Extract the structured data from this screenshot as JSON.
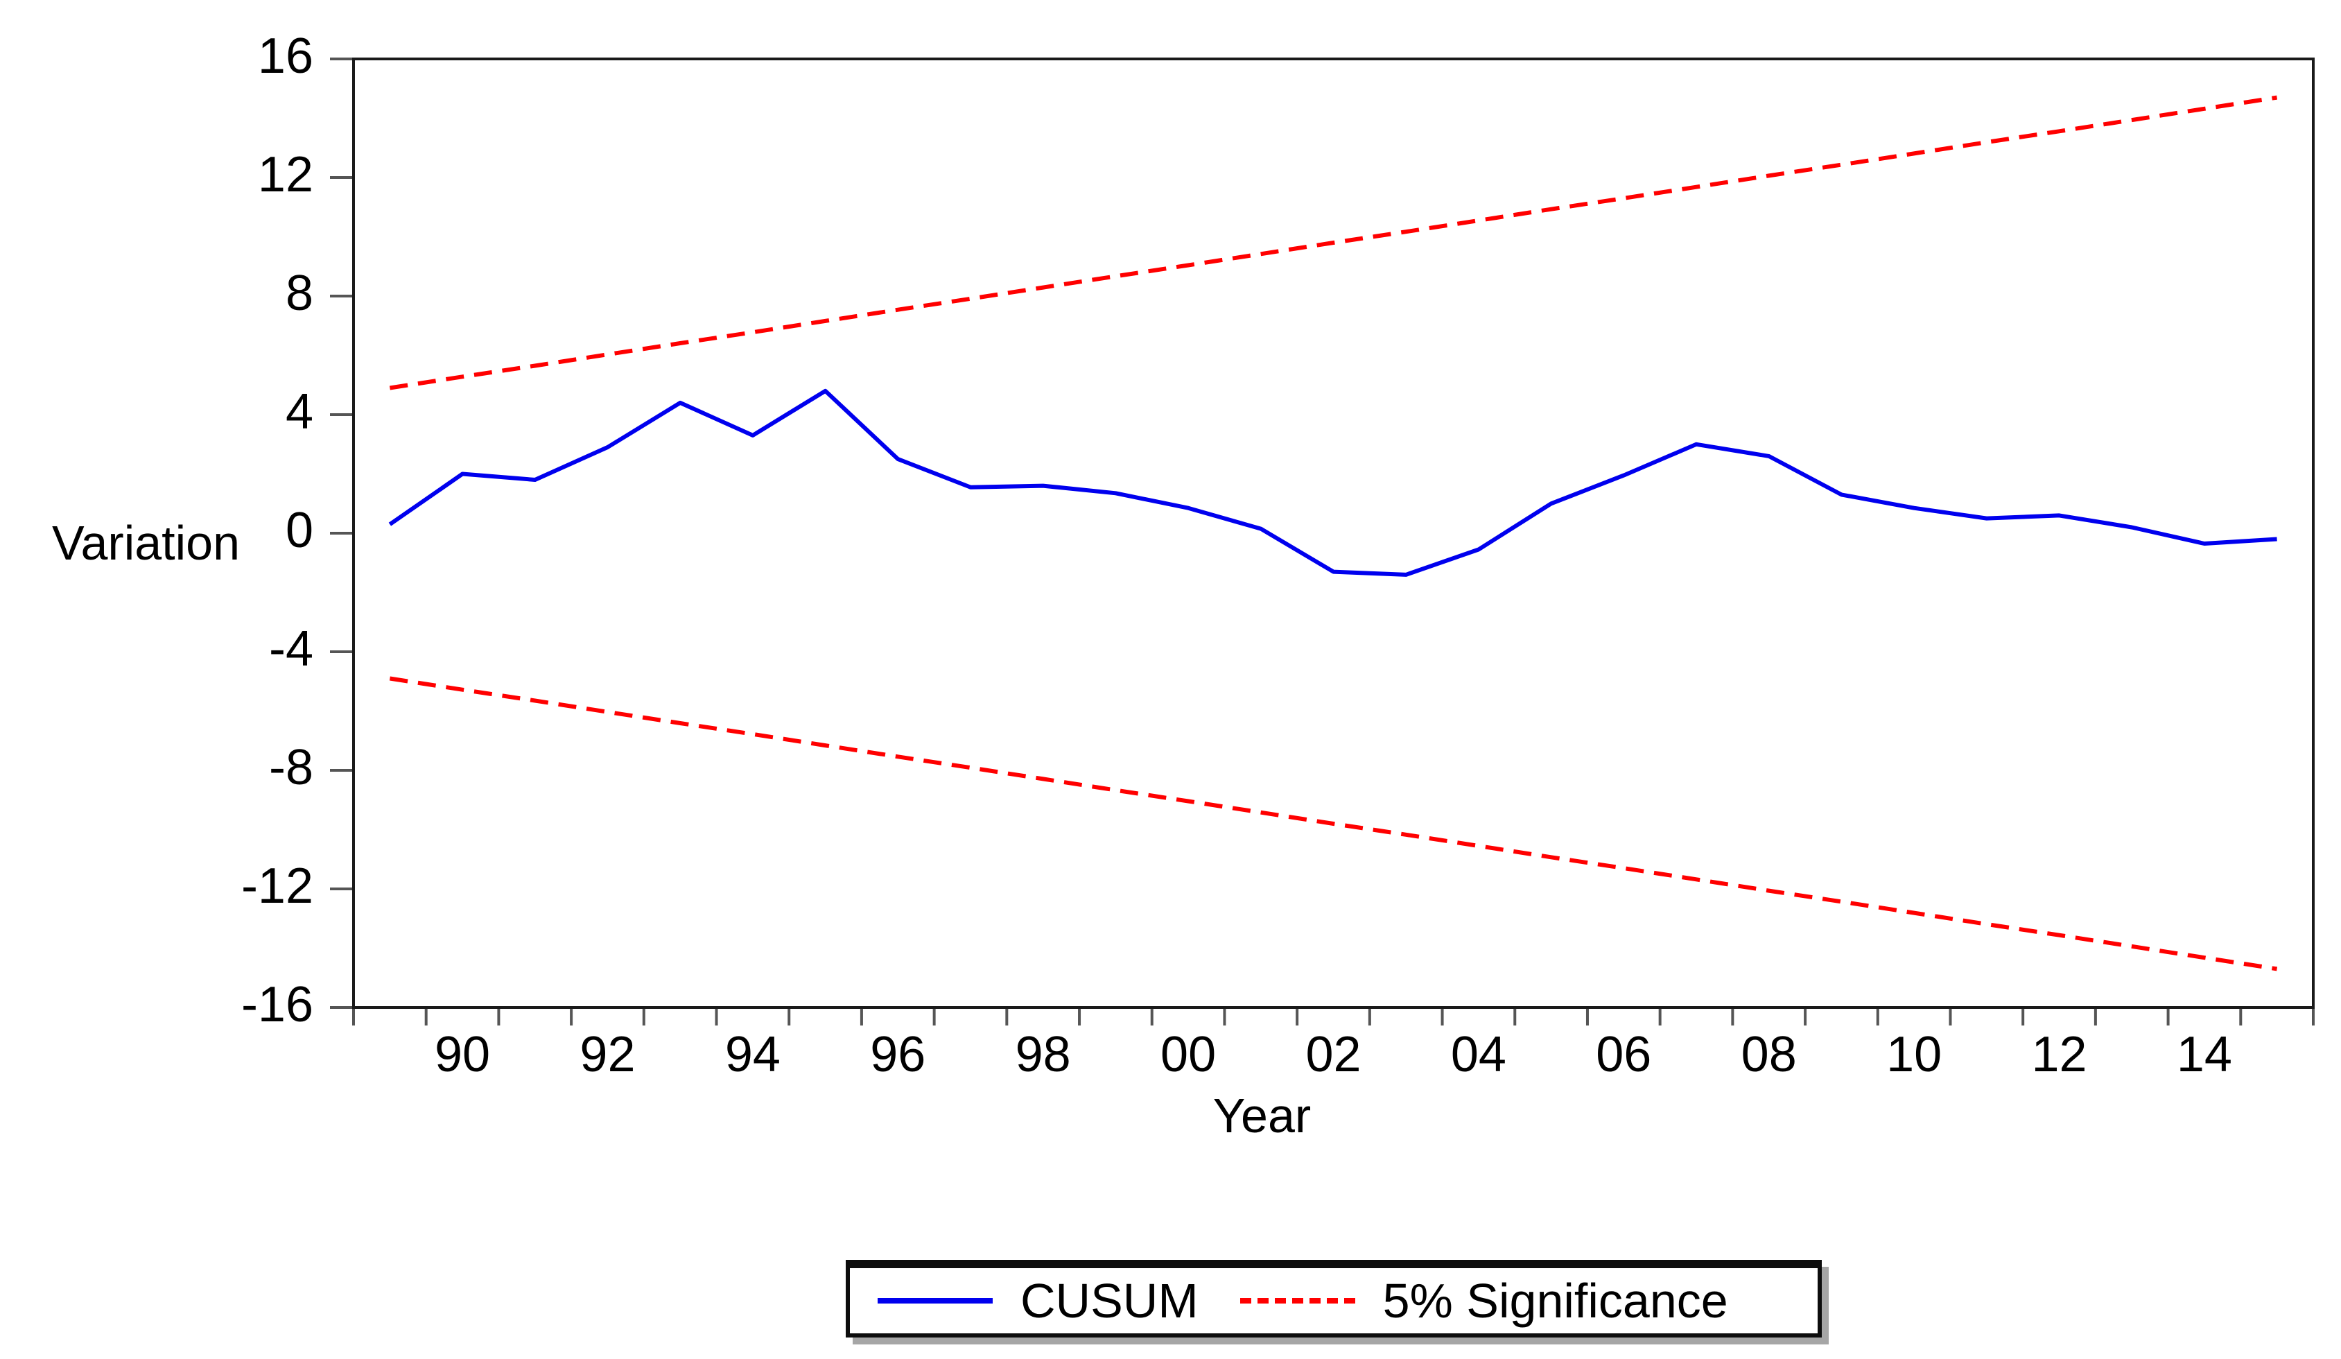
{
  "figure": {
    "background": "#ffffff",
    "ylabel": "Variation",
    "xlabel": "Year",
    "frame_color": "#1a1a1a",
    "tick_color": "#555555",
    "legend": {
      "items": [
        {
          "label": "CUSUM",
          "color": "#0000ee",
          "style": "solid"
        },
        {
          "label": "5% Significance",
          "color": "#ff0000",
          "style": "dashed"
        }
      ]
    }
  },
  "chart_data": {
    "type": "line",
    "title": "",
    "xlabel": "Year",
    "ylabel": "Variation",
    "grid": false,
    "legend_position": "bottom-center-box",
    "ylim": [
      -16,
      16
    ],
    "y_ticks": [
      16,
      12,
      8,
      4,
      0,
      -4,
      -8,
      -12,
      -16
    ],
    "years": [
      1989,
      1990,
      1991,
      1992,
      1993,
      1994,
      1995,
      1996,
      1997,
      1998,
      1999,
      2000,
      2001,
      2002,
      2003,
      2004,
      2005,
      2006,
      2007,
      2008,
      2009,
      2010,
      2011,
      2012,
      2013,
      2014,
      2015
    ],
    "x_tick_labels": [
      "90",
      "92",
      "94",
      "96",
      "98",
      "00",
      "02",
      "04",
      "06",
      "08",
      "10",
      "12",
      "14"
    ],
    "x_tick_label_years": [
      1990,
      1992,
      1994,
      1996,
      1998,
      2000,
      2002,
      2004,
      2006,
      2008,
      2010,
      2012,
      2014
    ],
    "series": [
      {
        "name": "CUSUM",
        "style": "solid",
        "color": "#0000ee",
        "values": [
          0.3,
          2.0,
          1.8,
          2.9,
          4.4,
          3.3,
          4.8,
          2.5,
          1.55,
          1.6,
          1.35,
          0.85,
          0.15,
          -1.3,
          -1.4,
          -0.55,
          1.0,
          1.95,
          3.0,
          2.6,
          1.3,
          0.85,
          0.5,
          0.6,
          0.2,
          -0.35,
          -0.2
        ]
      },
      {
        "name": "5% Significance (upper)",
        "style": "dashed",
        "color": "#ff0000",
        "values": [
          4.9,
          5.28,
          5.65,
          6.03,
          6.41,
          6.78,
          7.16,
          7.54,
          7.91,
          8.29,
          8.67,
          9.04,
          9.42,
          9.8,
          10.17,
          10.55,
          10.93,
          11.3,
          11.68,
          12.06,
          12.43,
          12.81,
          13.19,
          13.56,
          13.94,
          14.32,
          14.7
        ]
      },
      {
        "name": "5% Significance (lower)",
        "style": "dashed",
        "color": "#ff0000",
        "values": [
          -4.9,
          -5.28,
          -5.65,
          -6.03,
          -6.41,
          -6.78,
          -7.16,
          -7.54,
          -7.91,
          -8.29,
          -8.67,
          -9.04,
          -9.42,
          -9.8,
          -10.17,
          -10.55,
          -10.93,
          -11.3,
          -11.68,
          -12.06,
          -12.43,
          -12.81,
          -13.19,
          -13.56,
          -13.94,
          -14.32,
          -14.7
        ]
      }
    ]
  }
}
